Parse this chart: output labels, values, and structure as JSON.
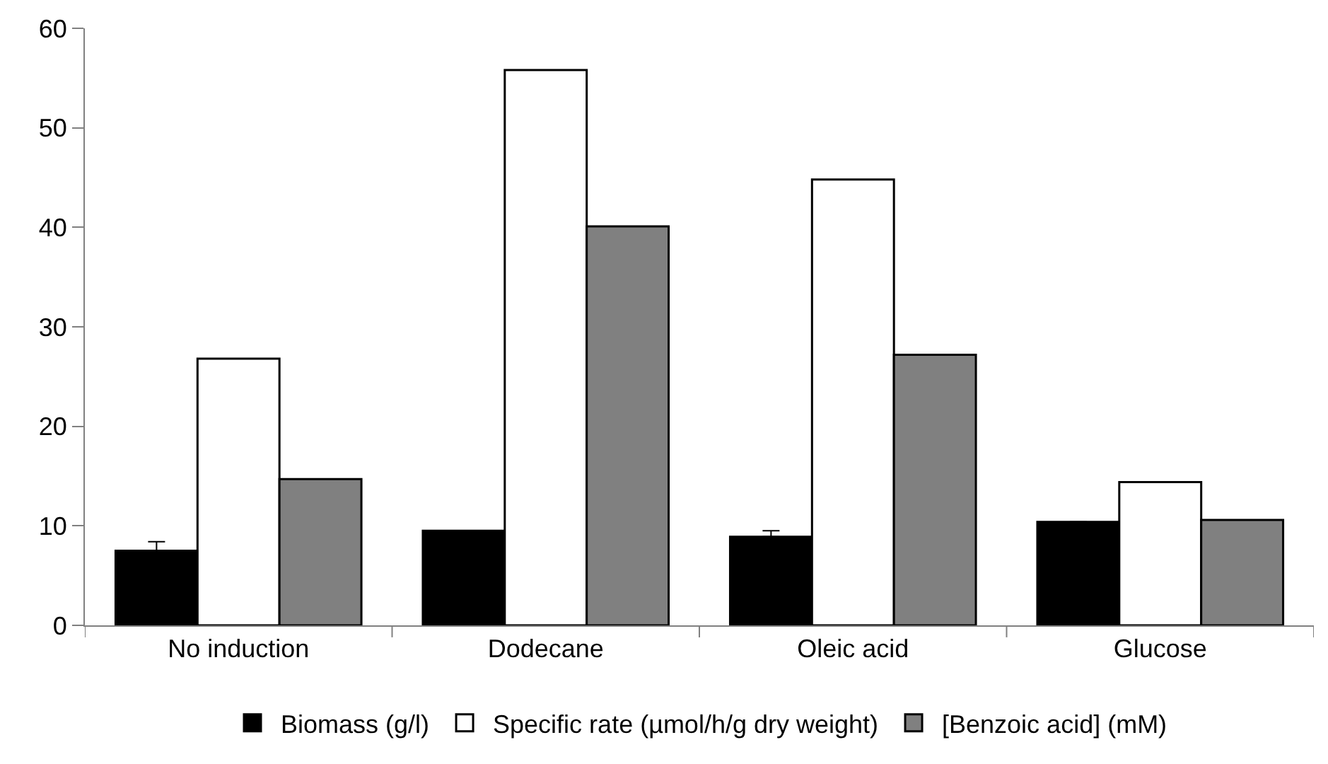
{
  "chart_data": {
    "type": "bar",
    "categories": [
      "No induction",
      "Dodecane",
      "Oleic acid",
      "Glucose"
    ],
    "series": [
      {
        "name": "Biomass (g/l)",
        "color": "#000000",
        "values": [
          7.5,
          9.5,
          8.9,
          10.4
        ],
        "errors": [
          0.9,
          null,
          0.6,
          null
        ]
      },
      {
        "name": "Specific rate (µmol/h/g dry weight)",
        "color": "#ffffff",
        "values": [
          26.8,
          55.8,
          44.8,
          14.4
        ]
      },
      {
        "name": "[Benzoic acid] (mM)",
        "color": "#808080",
        "values": [
          14.7,
          40.1,
          27.2,
          10.6
        ]
      }
    ],
    "ylim": [
      0,
      60
    ],
    "yticks": [
      0,
      10,
      20,
      30,
      40,
      50,
      60
    ],
    "legend": "bottom"
  }
}
